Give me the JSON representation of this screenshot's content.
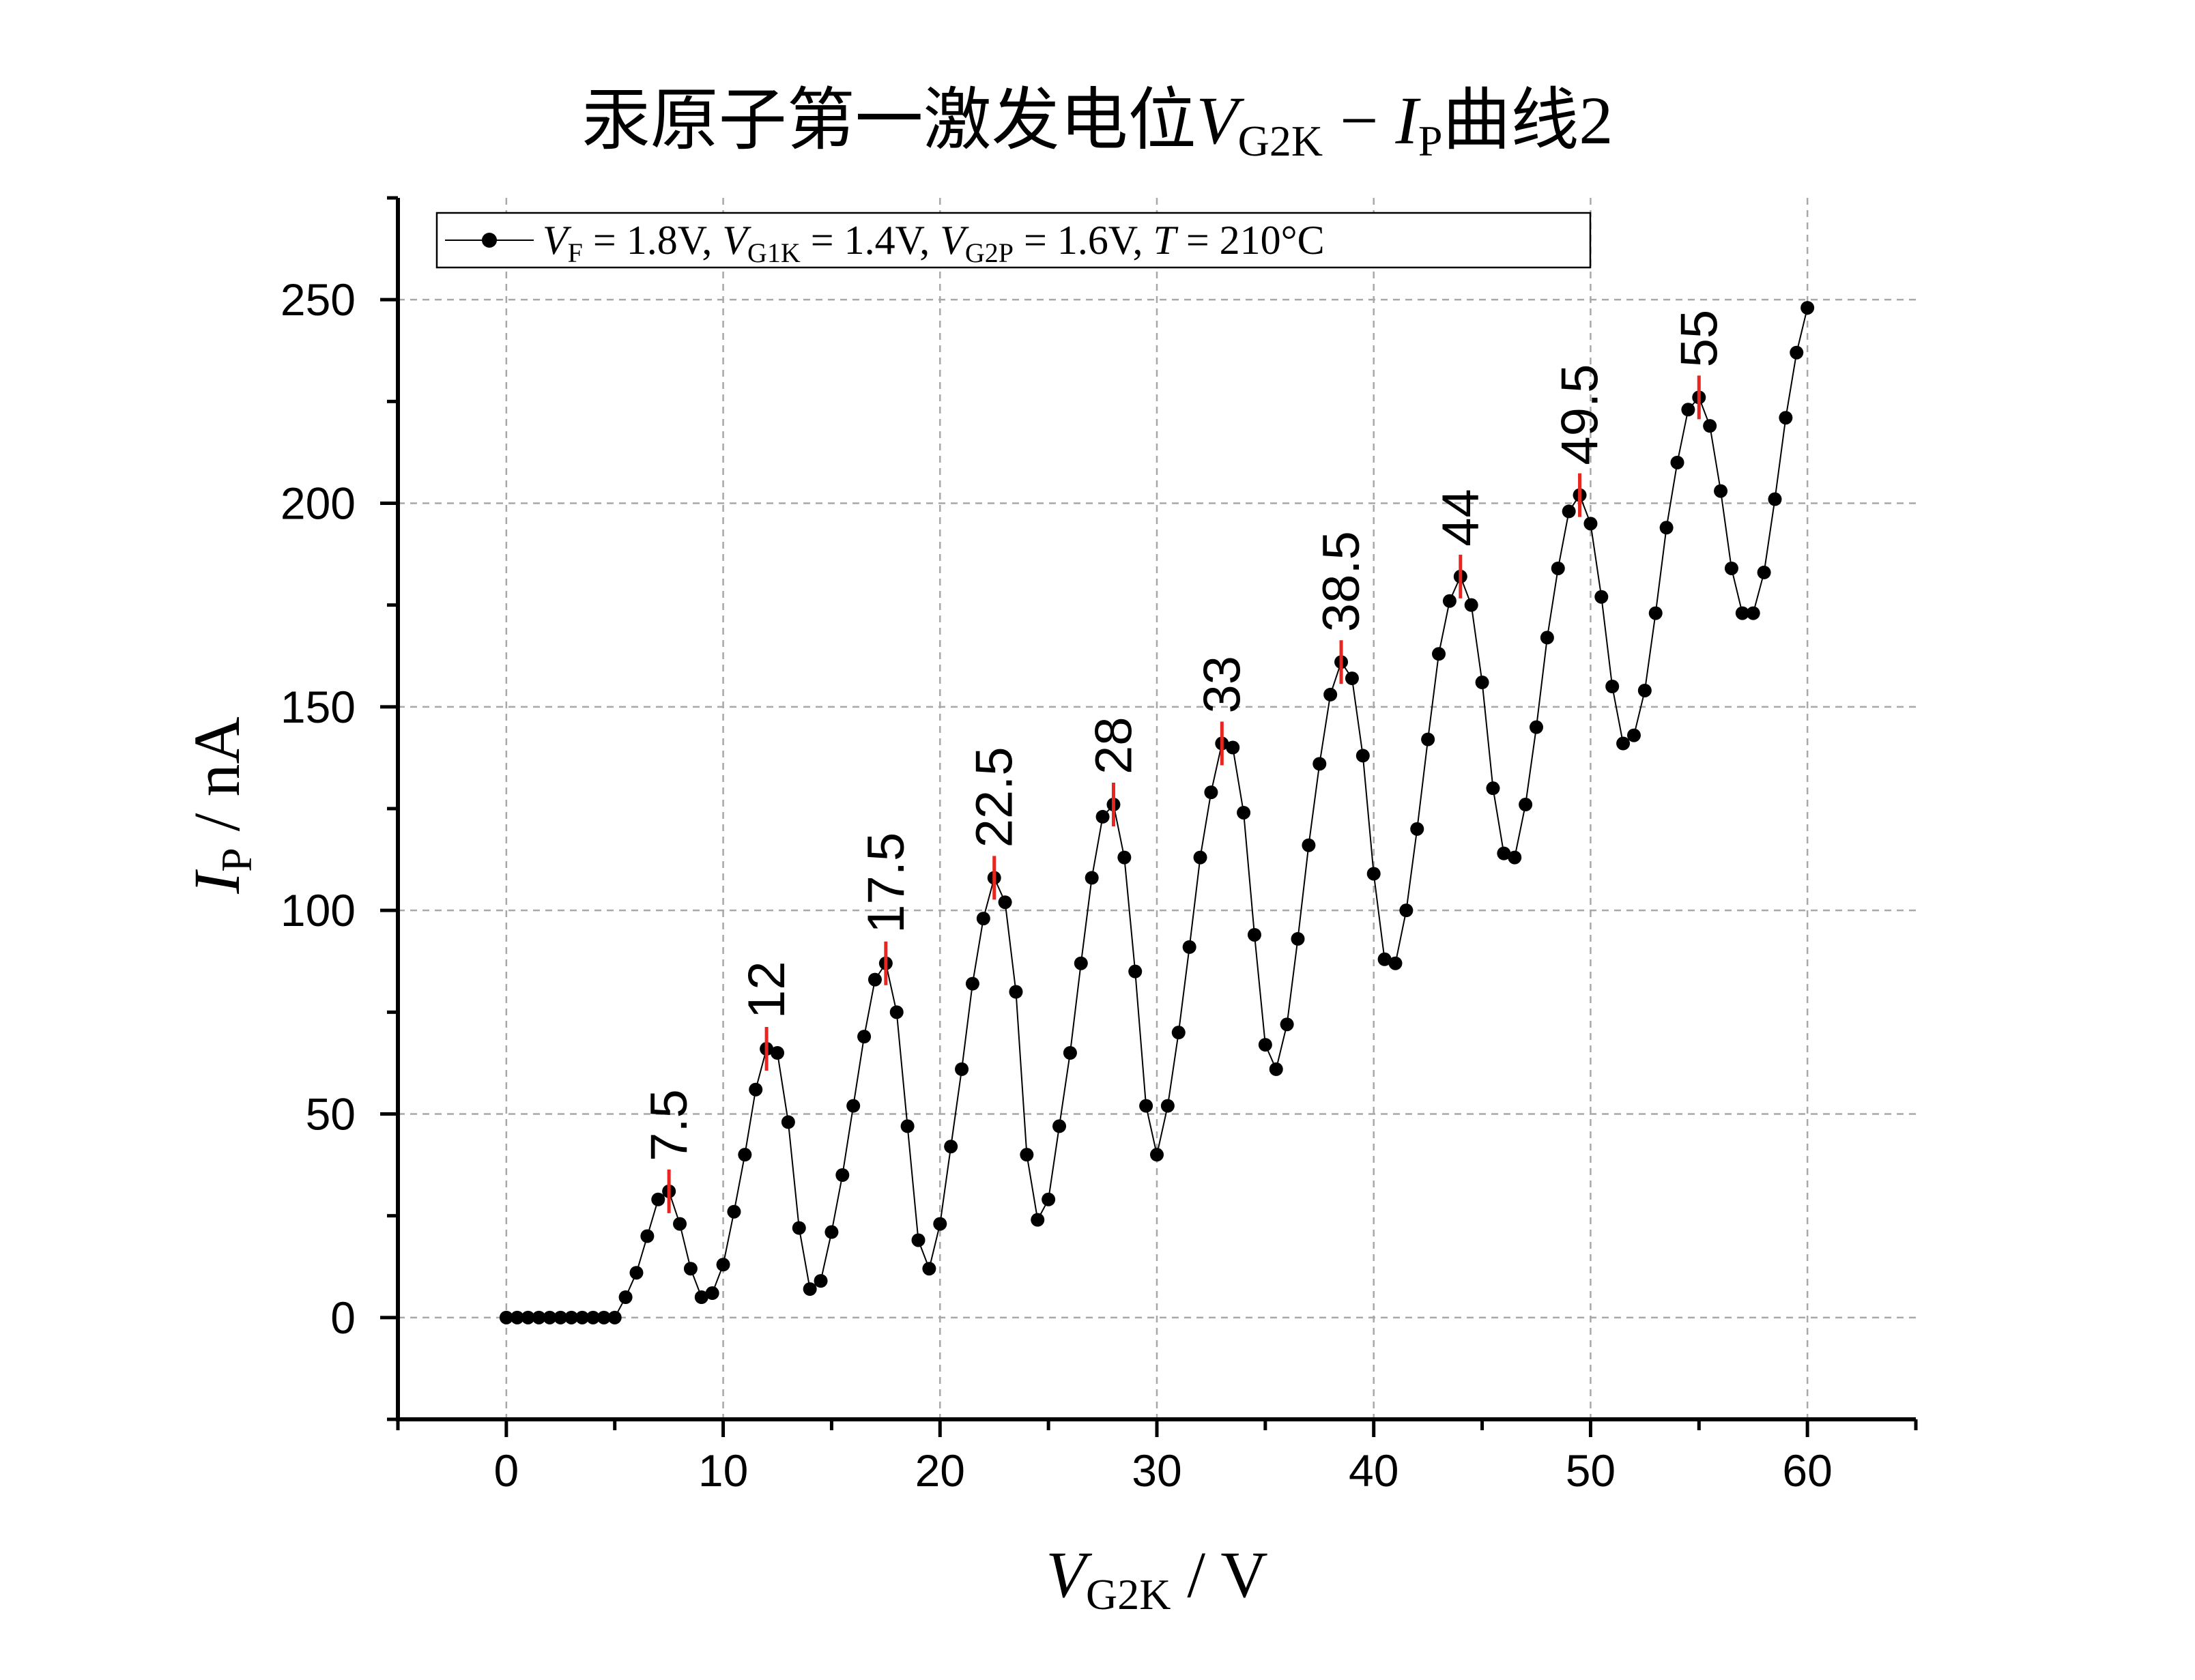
{
  "chart_data": {
    "type": "line",
    "title_prefix": "汞原子第一激发电位",
    "title_var_main": "V",
    "title_var_sub": "G2K",
    "title_minus": " − ",
    "title_var2_main": "I",
    "title_var2_sub": "P",
    "title_suffix": "曲线2",
    "xlabel_main": "V",
    "xlabel_sub": "G2K",
    "xlabel_unit": " / V",
    "ylabel_main": "I",
    "ylabel_sub": "P",
    "ylabel_unit": " / nA",
    "xlim": [
      -5,
      65
    ],
    "ylim": [
      -25,
      275
    ],
    "xticks": [
      0,
      10,
      20,
      30,
      40,
      50,
      60
    ],
    "yticks": [
      0,
      50,
      100,
      150,
      200,
      250
    ],
    "grid": true,
    "legend_position": "top-left",
    "legend": {
      "p1_main": "V",
      "p1_sub": "F",
      "p1_val": " = 1.8V, ",
      "p2_main": "V",
      "p2_sub": "G1K",
      "p2_val": " = 1.4V, ",
      "p3_main": "V",
      "p3_sub": "G2P",
      "p3_val": " = 1.6V, ",
      "p4_main": "T",
      "p4_val": " = 210°C"
    },
    "series": [
      {
        "color": "#000000",
        "x": [
          0,
          0.5,
          1,
          1.5,
          2,
          2.5,
          3,
          3.5,
          4,
          4.5,
          5,
          5.5,
          6,
          6.5,
          7,
          7.5,
          8,
          8.5,
          9,
          9.5,
          10,
          10.5,
          11,
          11.5,
          12,
          12.5,
          13,
          13.5,
          14,
          14.5,
          15,
          15.5,
          16,
          16.5,
          17,
          17.5,
          18,
          18.5,
          19,
          19.5,
          20,
          20.5,
          21,
          21.5,
          22,
          22.5,
          23,
          23.5,
          24,
          24.5,
          25,
          25.5,
          26,
          26.5,
          27,
          27.5,
          28,
          28.5,
          29,
          29.5,
          30,
          30.5,
          31,
          31.5,
          32,
          32.5,
          33,
          33.5,
          34,
          34.5,
          35,
          35.5,
          36,
          36.5,
          37,
          37.5,
          38,
          38.5,
          39,
          39.5,
          40,
          40.5,
          41,
          41.5,
          42,
          42.5,
          43,
          43.5,
          44,
          44.5,
          45,
          45.5,
          46,
          46.5,
          47,
          47.5,
          48,
          48.5,
          49,
          49.5,
          50,
          50.5,
          51,
          51.5,
          52,
          52.5,
          53,
          53.5,
          54,
          54.5,
          55,
          55.5,
          56,
          56.5,
          57,
          57.5,
          58,
          58.5,
          59,
          59.5,
          60
        ],
        "y": [
          0,
          0,
          0,
          0,
          0,
          0,
          0,
          0,
          0,
          0,
          0,
          5,
          11,
          20,
          29,
          31,
          23,
          12,
          5,
          6,
          13,
          26,
          40,
          56,
          66,
          65,
          48,
          22,
          7,
          9,
          21,
          35,
          52,
          69,
          83,
          87,
          75,
          47,
          19,
          12,
          23,
          42,
          61,
          82,
          98,
          108,
          102,
          80,
          40,
          24,
          29,
          47,
          65,
          87,
          108,
          123,
          126,
          113,
          85,
          52,
          40,
          52,
          70,
          91,
          113,
          129,
          141,
          140,
          124,
          94,
          67,
          61,
          72,
          93,
          116,
          136,
          153,
          161,
          157,
          138,
          109,
          88,
          87,
          100,
          120,
          142,
          163,
          176,
          182,
          175,
          156,
          130,
          114,
          113,
          126,
          145,
          167,
          184,
          198,
          202,
          195,
          177,
          155,
          141,
          143,
          154,
          173,
          194,
          210,
          223,
          226,
          219,
          203,
          184,
          173,
          173,
          183,
          201,
          221,
          237,
          248
        ]
      }
    ],
    "peaks": [
      {
        "x": 7.5,
        "y": 31,
        "label": "7.5"
      },
      {
        "x": 12,
        "y": 66,
        "label": "12"
      },
      {
        "x": 17.5,
        "y": 87,
        "label": "17.5"
      },
      {
        "x": 22.5,
        "y": 108,
        "label": "22.5"
      },
      {
        "x": 28,
        "y": 126,
        "label": "28"
      },
      {
        "x": 33,
        "y": 141,
        "label": "33"
      },
      {
        "x": 38.5,
        "y": 161,
        "label": "38.5"
      },
      {
        "x": 44,
        "y": 182,
        "label": "44"
      },
      {
        "x": 49.5,
        "y": 202,
        "label": "49.5"
      },
      {
        "x": 55,
        "y": 226,
        "label": "55"
      }
    ],
    "peak_marker_color": "#e8251f"
  }
}
